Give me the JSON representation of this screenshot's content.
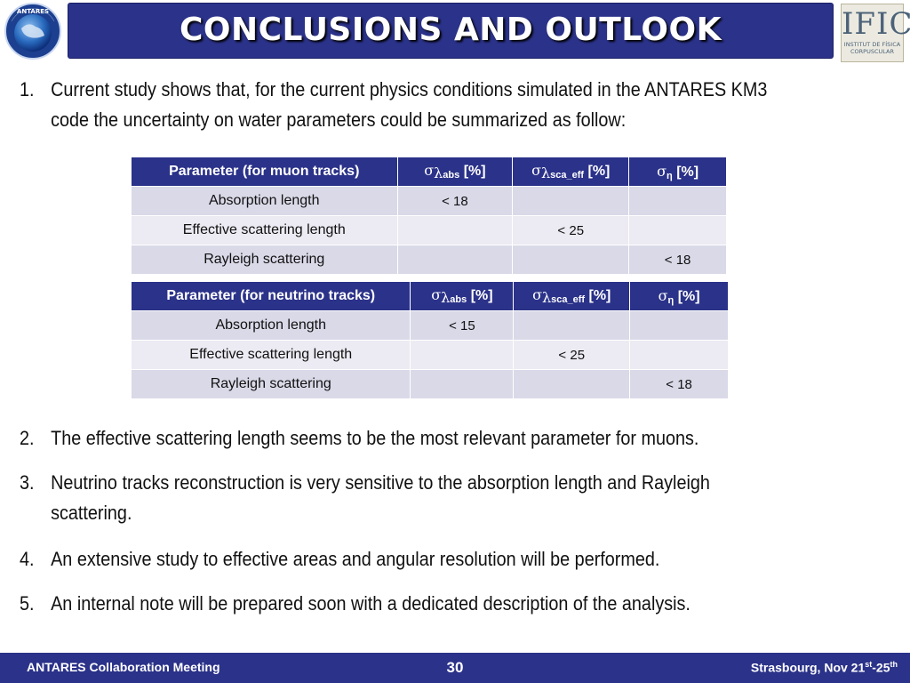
{
  "slide": {
    "title": "CONCLUSIONS AND OUTLOOK",
    "logo_right": {
      "name": "IFIC",
      "line1": "INSTITUT DE FÍSICA",
      "line2": "CORPUSCULAR"
    },
    "logo_left": {
      "name": "ANTARES"
    }
  },
  "points": [
    {
      "number": "1.",
      "text_line1": "Current study shows that, for the current physics conditions simulated in the ANTARES KM3",
      "text_line2": "code the uncertainty on water parameters could be summarized as follow:"
    },
    {
      "number": "2.",
      "text": "The effective scattering length seems to be the most relevant parameter for muons."
    },
    {
      "number": "3.",
      "text_line1": "Neutrino tracks reconstruction is very sensitive to the absorption length and Rayleigh",
      "text_line2": "scattering."
    },
    {
      "number": "4.",
      "text": "An extensive study to effective areas and angular resolution will be performed."
    },
    {
      "number": "5.",
      "text": "An internal note will be prepared soon with a dedicated description of the analysis."
    }
  ],
  "tables": {
    "muon": {
      "header": "Parameter (for muon tracks)",
      "col_abs_sub": "abs",
      "col_sca_sub": "sca_eff",
      "col_eta_sub": "η",
      "unit": "[%]",
      "rows": [
        {
          "param": "Absorption length",
          "abs": "< 18",
          "sca": "",
          "eta": ""
        },
        {
          "param": "Effective scattering length",
          "abs": "",
          "sca": "< 25",
          "eta": ""
        },
        {
          "param": "Rayleigh scattering",
          "abs": "",
          "sca": "",
          "eta": "< 18"
        }
      ]
    },
    "neutrino": {
      "header": "Parameter (for neutrino tracks)",
      "col_abs_sub": "abs",
      "col_sca_sub": "sca_eff",
      "col_eta_sub": "η",
      "unit": "[%]",
      "rows": [
        {
          "param": "Absorption length",
          "abs": "< 15",
          "sca": "",
          "eta": ""
        },
        {
          "param": "Effective scattering length",
          "abs": "",
          "sca": "< 25",
          "eta": ""
        },
        {
          "param": "Rayleigh scattering",
          "abs": "",
          "sca": "",
          "eta": "< 18"
        }
      ]
    }
  },
  "footer": {
    "left": "ANTARES Collaboration Meeting",
    "page": "30",
    "right_prefix": "Strasbourg, Nov 21",
    "sup1": "st",
    "dash": "-25",
    "sup2": "th"
  },
  "colors": {
    "title_bg": "#2b3289",
    "row_dark": "#d9d9e8",
    "row_light": "#eceaf2"
  }
}
